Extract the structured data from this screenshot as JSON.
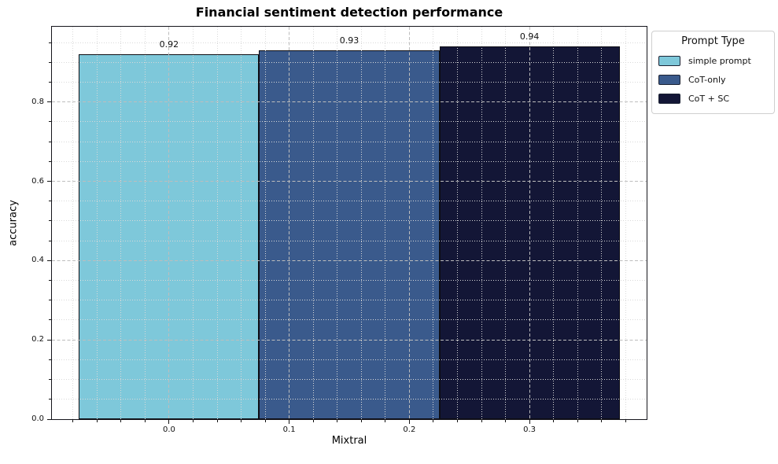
{
  "chart_data": {
    "type": "bar",
    "title": "Financial sentiment detection performance",
    "xlabel": "Mixtral",
    "ylabel": "accuracy",
    "categories": [
      "simple prompt",
      "CoT-only",
      "CoT + SC"
    ],
    "values": [
      0.92,
      0.93,
      0.94
    ],
    "value_labels": [
      "0.92",
      "0.93",
      "0.94"
    ],
    "colors": [
      "#7ec8da",
      "#3a5a8c",
      "#131636"
    ],
    "bar_centers": [
      0.0,
      0.15,
      0.3
    ],
    "bar_width": 0.15,
    "xlim": [
      -0.0975,
      0.3975
    ],
    "ylim": [
      0,
      0.99
    ],
    "xticks": [
      0.0,
      0.1,
      0.2,
      0.3
    ],
    "xtick_labels": [
      "0.0",
      "0.1",
      "0.2",
      "0.3"
    ],
    "yticks": [
      0.0,
      0.2,
      0.4,
      0.6,
      0.8
    ],
    "ytick_labels": [
      "0.0",
      "0.2",
      "0.4",
      "0.6",
      "0.8"
    ],
    "x_minor_step": 0.02,
    "y_minor_step": 0.05,
    "grid": "major dashed + minor dotted, drawn above bars",
    "legend_position": "upper right, outside axes"
  },
  "legend": {
    "title": "Prompt Type",
    "entries": [
      {
        "label": "simple prompt",
        "color": "#7ec8da"
      },
      {
        "label": "CoT-only",
        "color": "#3a5a8c"
      },
      {
        "label": "CoT + SC",
        "color": "#131636"
      }
    ]
  }
}
